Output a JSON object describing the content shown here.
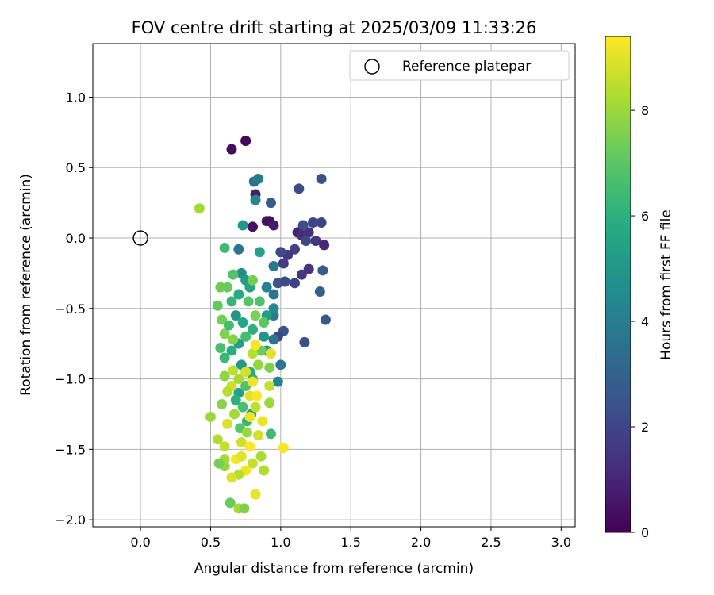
{
  "chart_data": {
    "type": "scatter",
    "title": "FOV centre drift starting at 2025/03/09 11:33:26",
    "xlabel": "Angular distance from reference (arcmin)",
    "ylabel": "Rotation from reference (arcmin)",
    "xlim": [
      -0.34,
      3.1
    ],
    "ylim": [
      -2.05,
      1.38
    ],
    "xticks": [
      "0.0",
      "0.5",
      "1.0",
      "1.5",
      "2.0",
      "2.5",
      "3.0"
    ],
    "yticks": [
      "1.0",
      "0.5",
      "0.0",
      "−0.5",
      "−1.0",
      "−1.5",
      "−2.0"
    ],
    "grid": true,
    "legend": {
      "position": "top-right",
      "entries": [
        "Reference platepar"
      ]
    },
    "reference_point": {
      "x": 0.0,
      "y": 0.0,
      "label": "Reference platepar"
    },
    "colorbar": {
      "label": "Hours from first FF file",
      "colormap": "viridis",
      "range": [
        0,
        9.4
      ],
      "ticks": [
        "0",
        "2",
        "4",
        "6",
        "8"
      ]
    },
    "series": [
      {
        "color_by": "hours",
        "points": [
          [
            0.65,
            0.63,
            0.3
          ],
          [
            0.75,
            0.69,
            0.2
          ],
          [
            0.8,
            0.08,
            0.5
          ],
          [
            0.82,
            0.31,
            0.8
          ],
          [
            0.9,
            0.12,
            0.6
          ],
          [
            0.92,
            0.12,
            0.4
          ],
          [
            0.95,
            0.09,
            0.7
          ],
          [
            1.12,
            0.04,
            0.9
          ],
          [
            1.15,
            0.02,
            1.2
          ],
          [
            1.2,
            0.04,
            1.3
          ],
          [
            1.25,
            -0.02,
            1.5
          ],
          [
            1.31,
            -0.05,
            1.0
          ],
          [
            1.13,
            0.35,
            2.2
          ],
          [
            1.29,
            0.42,
            2.4
          ],
          [
            1.23,
            0.11,
            2.0
          ],
          [
            1.29,
            0.11,
            1.9
          ],
          [
            1.16,
            0.09,
            2.3
          ],
          [
            1.18,
            -0.02,
            2.0
          ],
          [
            1.1,
            -0.08,
            1.8
          ],
          [
            1.05,
            -0.12,
            1.6
          ],
          [
            1.0,
            -0.1,
            2.1
          ],
          [
            1.02,
            -0.18,
            1.7
          ],
          [
            0.98,
            -0.32,
            2.5
          ],
          [
            1.03,
            -0.31,
            2.2
          ],
          [
            1.1,
            -0.32,
            1.9
          ],
          [
            1.15,
            -0.26,
            1.6
          ],
          [
            1.2,
            -0.22,
            1.4
          ],
          [
            1.3,
            -0.23,
            2.7
          ],
          [
            1.28,
            -0.38,
            2.9
          ],
          [
            1.32,
            -0.58,
            2.6
          ],
          [
            1.17,
            -0.74,
            2.3
          ],
          [
            1.02,
            -0.66,
            2.5
          ],
          [
            0.98,
            -0.7,
            2.0
          ],
          [
            0.93,
            0.25,
            2.8
          ],
          [
            0.81,
            0.4,
            3.5
          ],
          [
            0.84,
            0.42,
            3.9
          ],
          [
            0.82,
            0.27,
            4.3
          ],
          [
            0.7,
            -0.08,
            3.6
          ],
          [
            0.95,
            -0.2,
            3.8
          ],
          [
            0.95,
            -0.4,
            3.7
          ],
          [
            0.95,
            -0.55,
            3.9
          ],
          [
            0.95,
            -0.72,
            3.7
          ],
          [
            1.0,
            -0.9,
            3.7
          ],
          [
            0.98,
            -1.02,
            4.3
          ],
          [
            0.73,
            0.09,
            5.0
          ],
          [
            0.85,
            -0.1,
            5.5
          ],
          [
            0.9,
            -0.35,
            4.2
          ],
          [
            0.6,
            -0.07,
            6.4
          ],
          [
            0.95,
            -0.5,
            4.5
          ],
          [
            0.9,
            -0.55,
            5.2
          ],
          [
            0.88,
            -0.7,
            4.9
          ],
          [
            0.9,
            -0.8,
            5.3
          ],
          [
            0.93,
            -1.39,
            6.4
          ],
          [
            0.92,
            -0.92,
            7.6
          ],
          [
            0.72,
            -0.25,
            4.6
          ],
          [
            0.75,
            -0.3,
            5.2
          ],
          [
            0.78,
            -0.35,
            5.5
          ],
          [
            0.7,
            -0.4,
            5.8
          ],
          [
            0.65,
            -0.45,
            6.2
          ],
          [
            0.68,
            -0.55,
            5.0
          ],
          [
            0.73,
            -0.6,
            5.6
          ],
          [
            0.8,
            -0.65,
            6.0
          ],
          [
            0.75,
            -0.7,
            6.5
          ],
          [
            0.7,
            -0.75,
            5.3
          ],
          [
            0.65,
            -0.8,
            5.9
          ],
          [
            0.6,
            -0.85,
            6.3
          ],
          [
            0.72,
            -0.9,
            5.1
          ],
          [
            0.78,
            -0.95,
            5.7
          ],
          [
            0.8,
            -1.0,
            6.1
          ],
          [
            0.75,
            -1.05,
            6.8
          ],
          [
            0.7,
            -1.1,
            5.4
          ],
          [
            0.68,
            -1.15,
            6.0
          ],
          [
            0.73,
            -1.2,
            6.6
          ],
          [
            0.79,
            -1.25,
            5.2
          ],
          [
            0.76,
            -1.3,
            6.2
          ],
          [
            0.71,
            -1.35,
            6.9
          ],
          [
            0.85,
            -0.45,
            6.7
          ],
          [
            0.88,
            -0.6,
            7.0
          ],
          [
            0.66,
            -0.26,
            6.8
          ],
          [
            0.62,
            -0.35,
            7.2
          ],
          [
            0.57,
            -0.35,
            7.3
          ],
          [
            0.55,
            -0.48,
            7.1
          ],
          [
            0.58,
            -0.58,
            7.4
          ],
          [
            0.6,
            -0.68,
            7.6
          ],
          [
            0.57,
            -0.78,
            6.6
          ],
          [
            0.63,
            -0.62,
            6.5
          ],
          [
            0.66,
            -0.72,
            7.7
          ],
          [
            0.6,
            -0.98,
            7.8
          ],
          [
            0.82,
            -0.55,
            7.5
          ],
          [
            0.8,
            -0.3,
            7.4
          ],
          [
            0.77,
            -0.45,
            6.9
          ],
          [
            0.86,
            -0.8,
            7.3
          ],
          [
            0.84,
            -0.9,
            7.9
          ],
          [
            0.8,
            -0.82,
            8.4
          ],
          [
            0.42,
            0.21,
            8.1
          ],
          [
            0.5,
            -1.27,
            8.0
          ],
          [
            0.55,
            -1.43,
            8.3
          ],
          [
            0.6,
            -1.48,
            8.6
          ],
          [
            0.62,
            -1.32,
            8.9
          ],
          [
            0.67,
            -1.25,
            8.1
          ],
          [
            0.58,
            -1.18,
            7.7
          ],
          [
            0.65,
            -1.05,
            8.7
          ],
          [
            0.7,
            -1.0,
            8.2
          ],
          [
            0.75,
            -0.95,
            8.8
          ],
          [
            0.78,
            -1.12,
            9.0
          ],
          [
            0.82,
            -1.2,
            8.5
          ],
          [
            0.76,
            -1.38,
            8.0
          ],
          [
            0.84,
            -1.4,
            8.8
          ],
          [
            0.86,
            -1.55,
            8.2
          ],
          [
            0.8,
            -1.6,
            8.6
          ],
          [
            0.75,
            -1.65,
            9.2
          ],
          [
            0.7,
            -1.68,
            8.4
          ],
          [
            0.65,
            -1.7,
            8.9
          ],
          [
            0.6,
            -1.62,
            7.9
          ],
          [
            0.68,
            -1.57,
            9.3
          ],
          [
            0.72,
            -1.45,
            8.7
          ],
          [
            0.64,
            -1.88,
            7.2
          ],
          [
            0.7,
            -1.92,
            8.1
          ],
          [
            0.74,
            -1.92,
            7.6
          ],
          [
            0.82,
            -1.82,
            9.1
          ],
          [
            0.88,
            -1.65,
            8.3
          ],
          [
            0.92,
            -1.17,
            8.0
          ],
          [
            1.02,
            -1.49,
            9.3
          ],
          [
            0.93,
            -0.82,
            9.0
          ],
          [
            0.82,
            -0.76,
            9.3
          ],
          [
            0.8,
            -1.02,
            9.2
          ],
          [
            0.78,
            -1.27,
            9.2
          ],
          [
            0.83,
            -1.12,
            9.4
          ],
          [
            0.6,
            -1.57,
            8.1
          ],
          [
            0.56,
            -1.6,
            7.4
          ],
          [
            0.66,
            -0.94,
            8.5
          ],
          [
            0.62,
            -1.09,
            8.4
          ],
          [
            0.87,
            -1.3,
            9.1
          ],
          [
            0.92,
            -1.05,
            8.6
          ],
          [
            0.72,
            -1.55,
            9.0
          ],
          [
            0.78,
            -1.48,
            9.4
          ]
        ]
      }
    ]
  }
}
